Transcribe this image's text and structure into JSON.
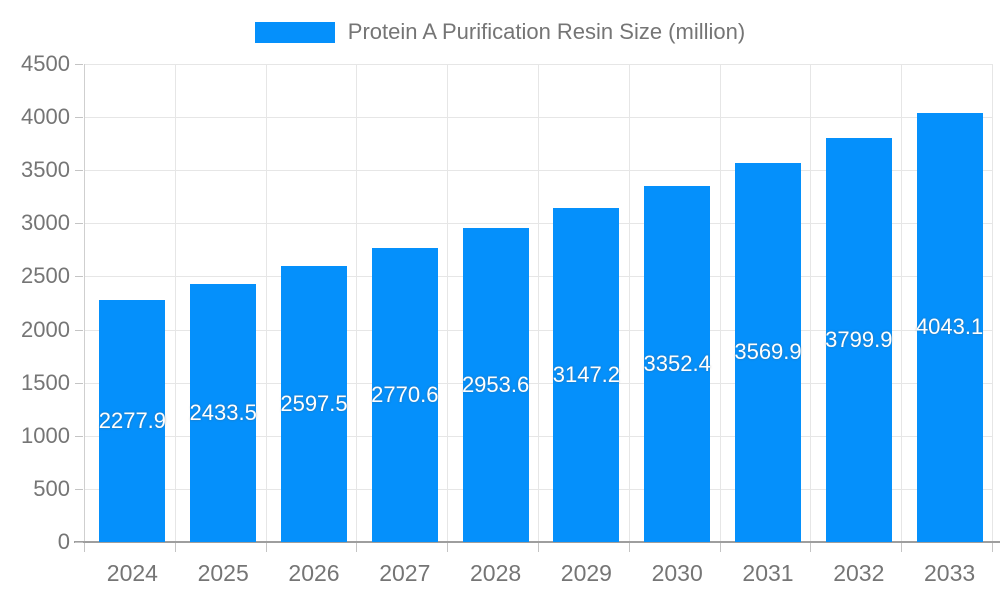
{
  "legend": {
    "label": "Protein A Purification Resin Size (million)",
    "swatch_color": "#0590fb"
  },
  "chart_data": {
    "type": "bar",
    "title": "Protein A Purification Resin Size (million)",
    "categories": [
      "2024",
      "2025",
      "2026",
      "2027",
      "2028",
      "2029",
      "2030",
      "2031",
      "2032",
      "2033"
    ],
    "series": [
      {
        "name": "Protein A Purification Resin Size (million)",
        "values": [
          2277.9,
          2433.5,
          2597.5,
          2770.6,
          2953.6,
          3147.2,
          3352.4,
          3569.9,
          3799.9,
          4043.1
        ]
      }
    ],
    "bar_labels": [
      "2277.9",
      "2433.5",
      "2597.5",
      "2770.6",
      "2953.6",
      "3147.2",
      "3352.4",
      "3569.9",
      "3799.9",
      "4043.1"
    ],
    "xlabel": "",
    "ylabel": "",
    "ylim": [
      0,
      4500
    ],
    "yticks": [
      0,
      500,
      1000,
      1500,
      2000,
      2500,
      3000,
      3500,
      4000,
      4500
    ],
    "grid": true,
    "legend_position": "top",
    "colors": {
      "bar": "#0590fb",
      "bar_label_text": "#ffffff",
      "axis_text": "#757575",
      "axis_line": "#9e9e9e",
      "gridline": "#e6e6e6"
    }
  }
}
